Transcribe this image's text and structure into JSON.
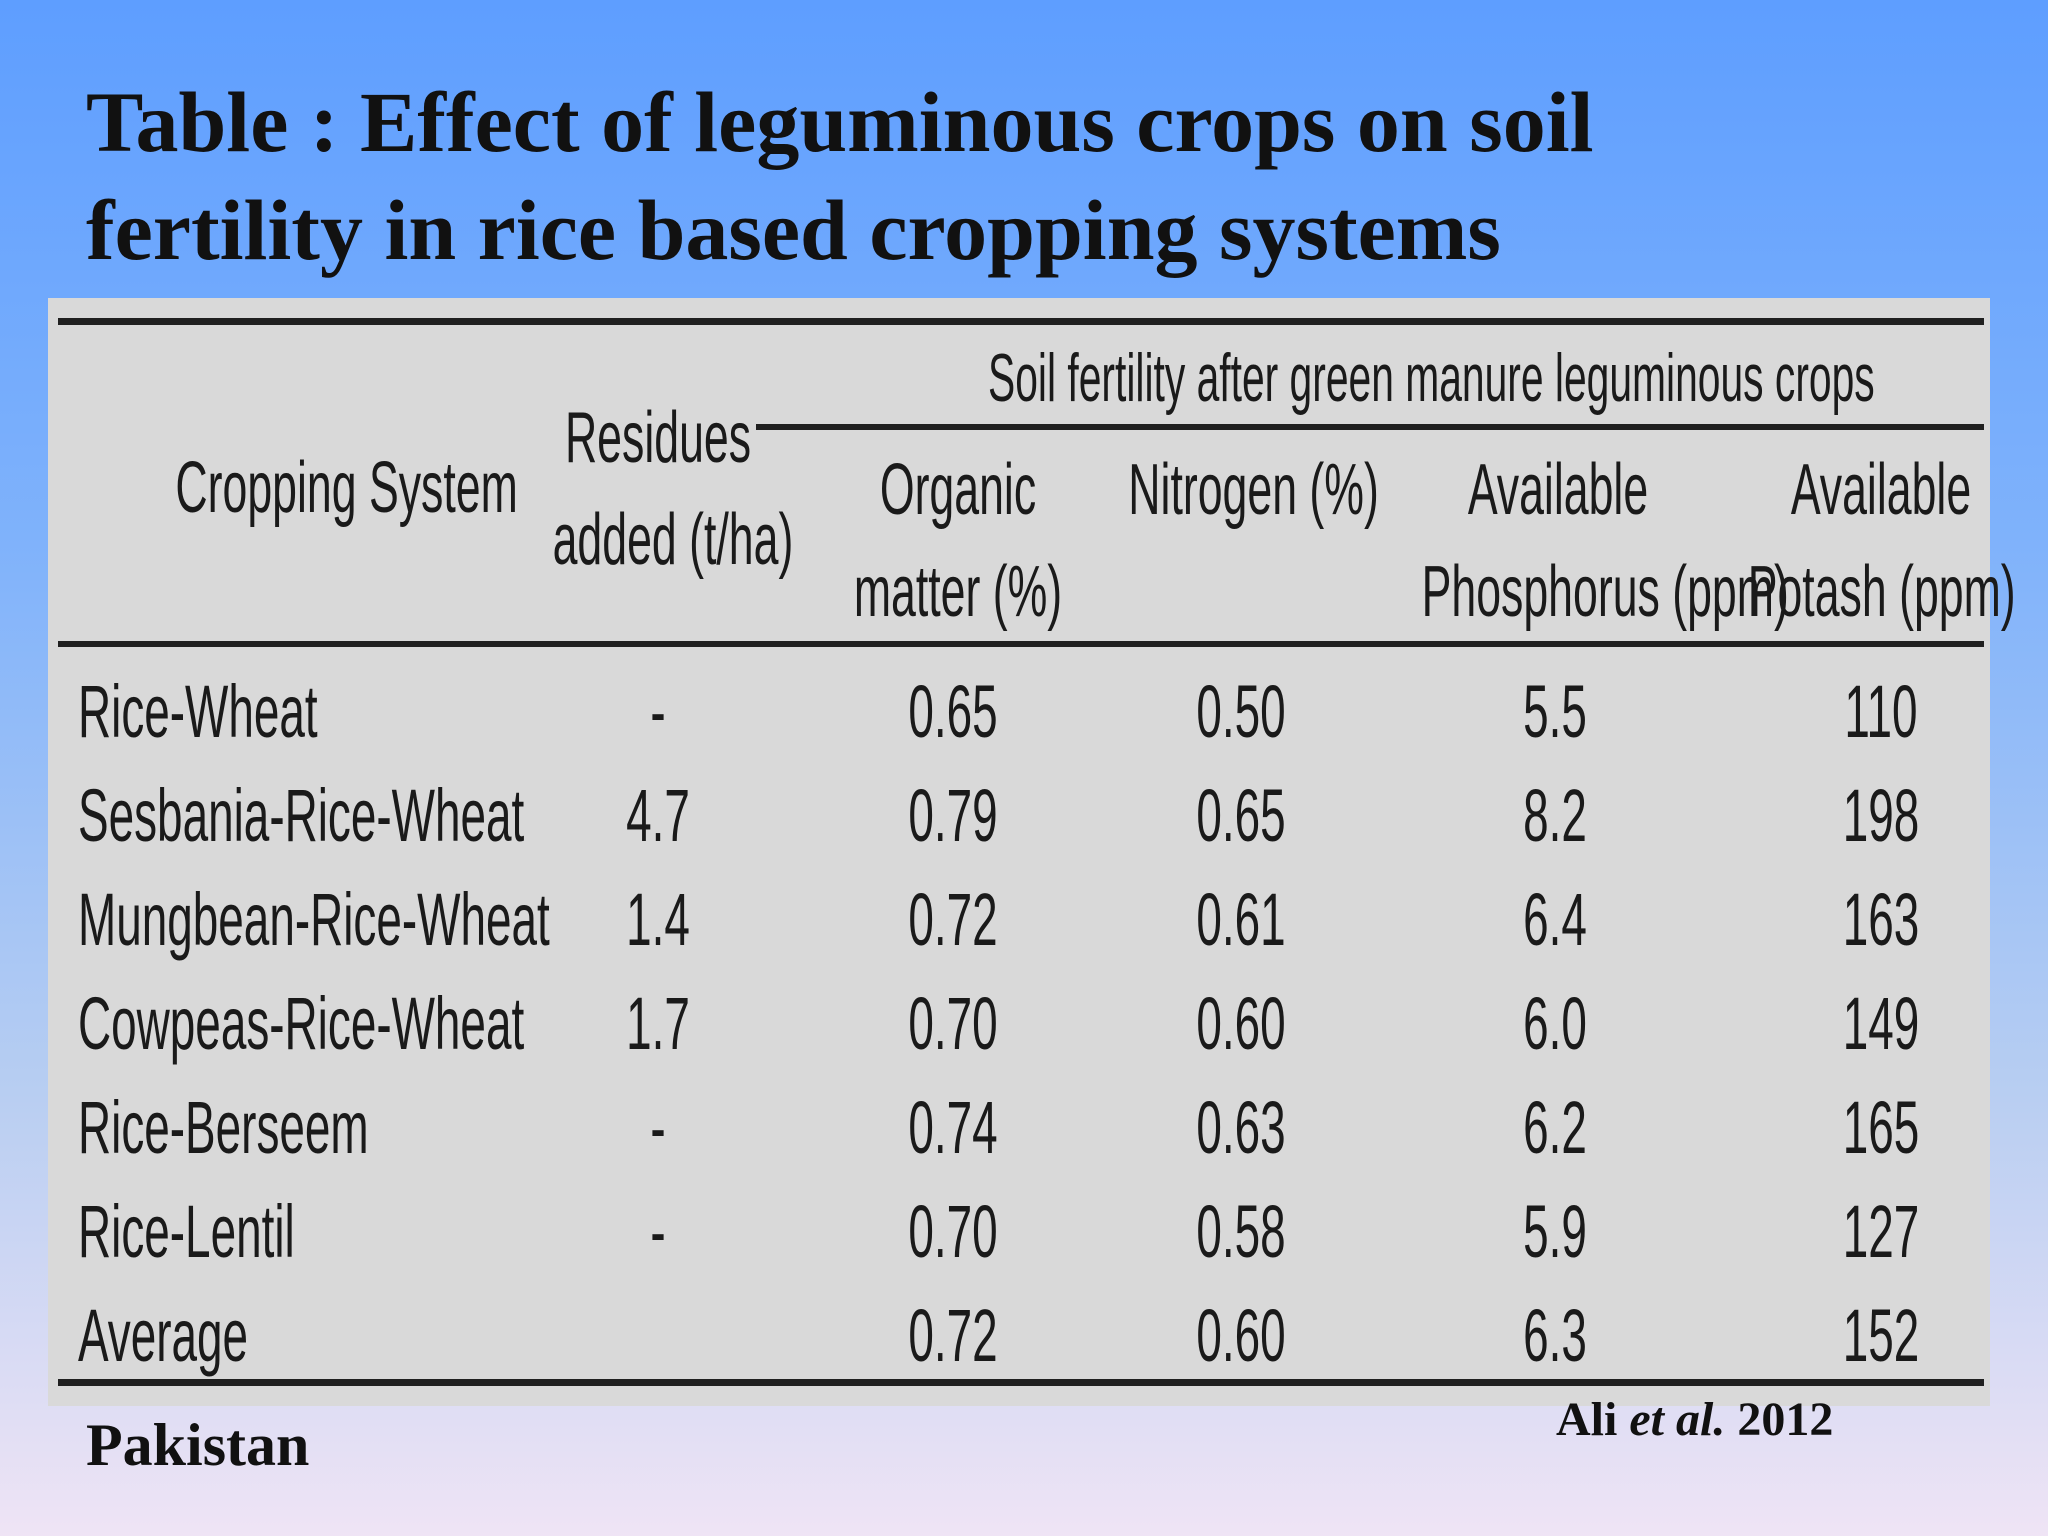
{
  "slide": {
    "title": "Table : Effect of leguminous crops on soil fertility in rice based cropping systems",
    "location": "Pakistan",
    "citation": {
      "author": "Ali",
      "etal": "et al.",
      "year": "2012"
    }
  },
  "table": {
    "group_header": "Soil fertility after green manure leguminous crops",
    "headers": {
      "crop": "Cropping System",
      "residues_l1": "Residues",
      "residues_l2": "added (t/ha)",
      "om_l1": "Organic",
      "om_l2": "matter (%)",
      "n": "Nitrogen (%)",
      "p_l1": "Available",
      "p_l2": "Phosphorus (ppm)",
      "k_l1": "Available",
      "k_l2": "Potash (ppm)"
    },
    "rows": [
      {
        "crop": "Rice-Wheat",
        "residues": "-",
        "om": "0.65",
        "n": "0.50",
        "p": "5.5",
        "k": "110"
      },
      {
        "crop": "Sesbania-Rice-Wheat",
        "residues": "4.7",
        "om": "0.79",
        "n": "0.65",
        "p": "8.2",
        "k": "198"
      },
      {
        "crop": "Mungbean-Rice-Wheat",
        "residues": "1.4",
        "om": "0.72",
        "n": "0.61",
        "p": "6.4",
        "k": "163"
      },
      {
        "crop": "Cowpeas-Rice-Wheat",
        "residues": "1.7",
        "om": "0.70",
        "n": "0.60",
        "p": "6.0",
        "k": "149"
      },
      {
        "crop": "Rice-Berseem",
        "residues": "-",
        "om": "0.74",
        "n": "0.63",
        "p": "6.2",
        "k": "165"
      },
      {
        "crop": "Rice-Lentil",
        "residues": "-",
        "om": "0.70",
        "n": "0.58",
        "p": "5.9",
        "k": "127"
      },
      {
        "crop": "Average",
        "residues": "",
        "om": "0.72",
        "n": "0.60",
        "p": "6.3",
        "k": "152"
      }
    ]
  }
}
